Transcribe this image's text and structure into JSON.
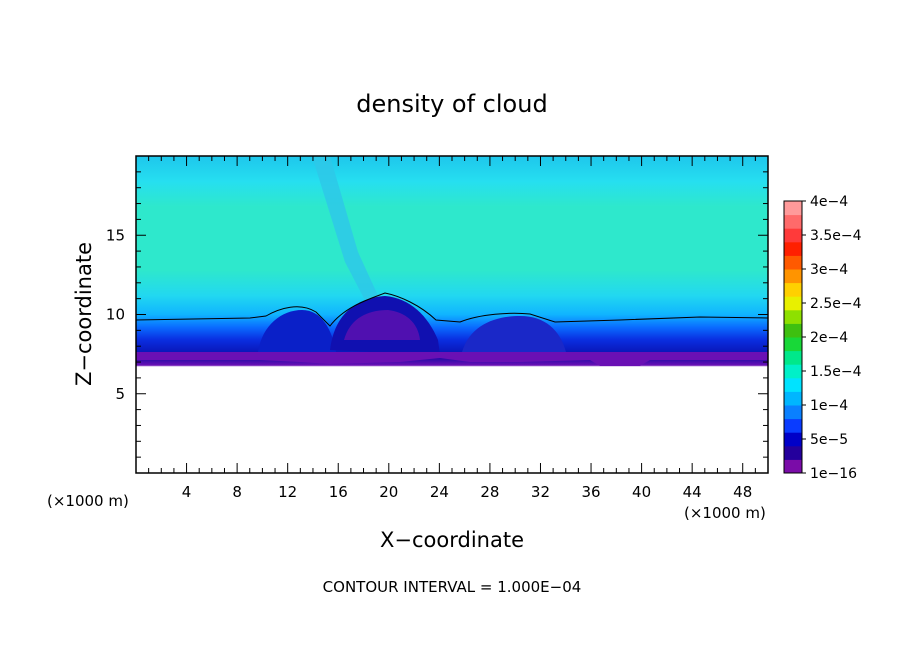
{
  "chart_data": {
    "type": "heatmap",
    "title": "density of cloud",
    "xlabel": "X−coordinate",
    "ylabel": "Z−coordinate",
    "x_unit_left": "(×1000 m)",
    "x_unit_right": "(×1000 m)",
    "footer": "CONTOUR INTERVAL = 1.000E−04",
    "xlim": [
      0,
      50
    ],
    "ylim": [
      0,
      20
    ],
    "x_ticks": [
      4,
      8,
      12,
      16,
      20,
      24,
      28,
      32,
      36,
      40,
      44,
      48
    ],
    "x_tick_labels": [
      "4",
      "8",
      "12",
      "16",
      "20",
      "24",
      "28",
      "32",
      "36",
      "40",
      "44",
      "48"
    ],
    "y_ticks": [
      5,
      10,
      15
    ],
    "y_tick_labels": [
      "5",
      "10",
      "15"
    ],
    "colorbar": {
      "levels": [
        1e-16,
        5e-05,
        0.0001,
        0.00015,
        0.0002,
        0.00025,
        0.0003,
        0.00035,
        0.0004
      ],
      "labels": [
        "1e−16",
        "5e−5",
        "1e−4",
        "1.5e−4",
        "2e−4",
        "2.5e−4",
        "3e−4",
        "3.5e−4",
        "4e−4"
      ],
      "colors": [
        "#7a0ca8",
        "#24009c",
        "#0000c8",
        "#0a3cff",
        "#0a80ff",
        "#00b6ff",
        "#00e3ff",
        "#00f0c8",
        "#00e88a",
        "#18d838",
        "#3ec010",
        "#8ee000",
        "#e8f000",
        "#ffd000",
        "#ff9400",
        "#ff5a00",
        "#ff2000",
        "#ff3a3a",
        "#ff6a6a",
        "#ff9a9a"
      ]
    },
    "grid": false
  }
}
